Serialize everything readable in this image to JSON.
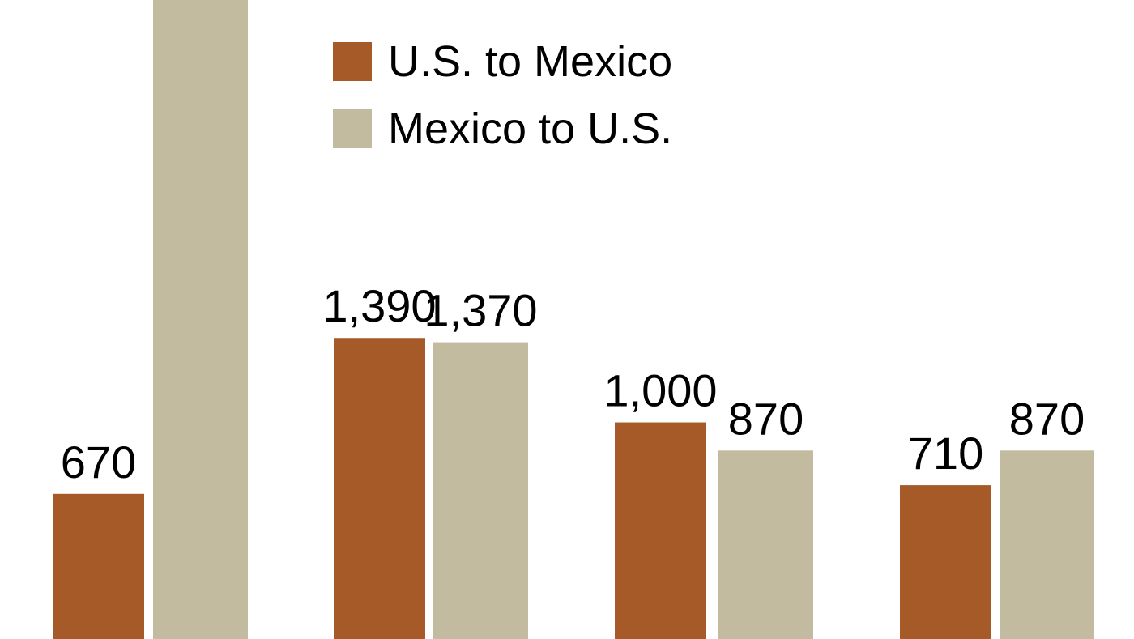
{
  "chart_data": {
    "type": "bar",
    "categories": [
      "",
      "",
      "",
      ""
    ],
    "series": [
      {
        "name": "U.S. to Mexico",
        "color": "#a55a28",
        "values": [
          670,
          1390,
          1000,
          710
        ],
        "labels": [
          "670",
          "1,390",
          "1,000",
          "710"
        ]
      },
      {
        "name": "Mexico to U.S.",
        "color": "#c2bb9f",
        "values": [
          2950,
          1370,
          870,
          870
        ],
        "labels": [
          "",
          "1,370",
          "870",
          "870"
        ]
      }
    ],
    "title": "",
    "xlabel": "",
    "ylabel": "",
    "ylim": [
      0,
      2950
    ],
    "grid": false,
    "legend": "top-center"
  }
}
